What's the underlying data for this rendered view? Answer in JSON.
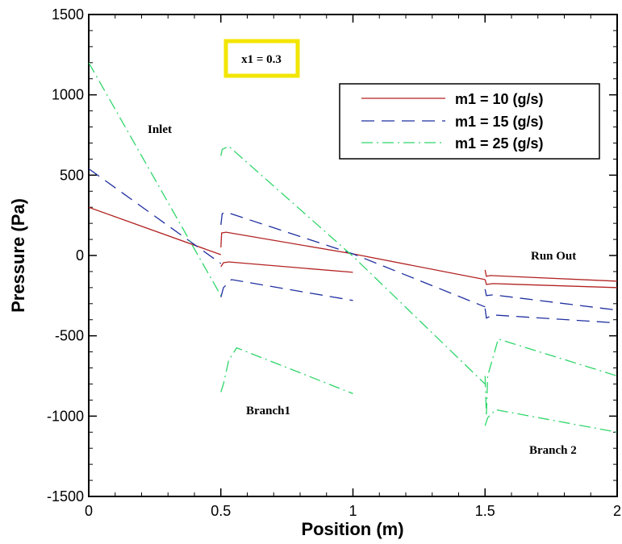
{
  "chart_data": {
    "type": "line",
    "xlabel": "Position (m)",
    "ylabel": "Pressure (Pa)",
    "xlim": [
      0,
      2
    ],
    "ylim": [
      -1500,
      1500
    ],
    "xticks": [
      "0",
      "0.5",
      "1",
      "1.5",
      "2"
    ],
    "xtick_values": [
      0,
      0.5,
      1,
      1.5,
      2
    ],
    "yticks": [
      "1500",
      "1000",
      "500",
      "0",
      "-500",
      "-1000",
      "-1500"
    ],
    "ytick_values": [
      1500,
      1000,
      500,
      0,
      -500,
      -1000,
      -1500
    ],
    "grid": false,
    "legend_position": "top-right",
    "parameter_box": "x1 = 0.3",
    "annotations": [
      "Inlet",
      "Branch1",
      "Run Out",
      "Branch 2"
    ],
    "series": [
      {
        "name": "m1 = 10 (g/s)",
        "color": "#b22222",
        "style": "solid",
        "segments": [
          [
            [
              0,
              300
            ],
            [
              0.5,
              5
            ]
          ],
          [
            [
              0.5,
              50
            ],
            [
              0.503,
              140
            ],
            [
              0.52,
              145
            ],
            [
              1.0,
              10
            ],
            [
              1.5,
              -150
            ]
          ],
          [
            [
              0.5,
              -70
            ],
            [
              0.51,
              -45
            ],
            [
              0.53,
              -40
            ],
            [
              1.0,
              -105
            ]
          ],
          [
            [
              1.5,
              -90
            ],
            [
              1.505,
              -130
            ],
            [
              1.52,
              -125
            ],
            [
              2.0,
              -160
            ]
          ],
          [
            [
              1.5,
              -150
            ],
            [
              1.505,
              -180
            ],
            [
              1.53,
              -175
            ],
            [
              2.0,
              -200
            ]
          ]
        ]
      },
      {
        "name": "m1 = 15 (g/s)",
        "color": "#1f2fa0",
        "style": "dashed",
        "segments": [
          [
            [
              0,
              540
            ],
            [
              0.5,
              -50
            ]
          ],
          [
            [
              0.5,
              190
            ],
            [
              0.505,
              260
            ],
            [
              0.52,
              270
            ],
            [
              1.0,
              10
            ],
            [
              1.5,
              -320
            ]
          ],
          [
            [
              0.5,
              -260
            ],
            [
              0.51,
              -200
            ],
            [
              0.54,
              -150
            ],
            [
              1.0,
              -280
            ]
          ],
          [
            [
              1.5,
              -210
            ],
            [
              1.505,
              -250
            ],
            [
              1.53,
              -245
            ],
            [
              2.0,
              -340
            ]
          ],
          [
            [
              1.5,
              -330
            ],
            [
              1.505,
              -390
            ],
            [
              1.53,
              -370
            ],
            [
              2.0,
              -420
            ]
          ]
        ]
      },
      {
        "name": "m1 = 25 (g/s)",
        "color": "#2fd66a",
        "style": "dashdot",
        "segments": [
          [
            [
              0,
              1200
            ],
            [
              0.5,
              -250
            ]
          ],
          [
            [
              0.5,
              620
            ],
            [
              0.505,
              660
            ],
            [
              0.53,
              680
            ],
            [
              1.0,
              -5
            ],
            [
              1.5,
              -800
            ]
          ],
          [
            [
              0.5,
              -850
            ],
            [
              0.51,
              -800
            ],
            [
              0.53,
              -650
            ],
            [
              0.56,
              -575
            ],
            [
              1.0,
              -860
            ]
          ],
          [
            [
              1.5,
              -750
            ],
            [
              1.505,
              -1000
            ],
            [
              1.51,
              -750
            ],
            [
              1.55,
              -520
            ],
            [
              2.0,
              -750
            ]
          ],
          [
            [
              1.5,
              -1060
            ],
            [
              1.51,
              -1010
            ],
            [
              1.54,
              -960
            ],
            [
              2.0,
              -1100
            ]
          ]
        ]
      }
    ]
  }
}
